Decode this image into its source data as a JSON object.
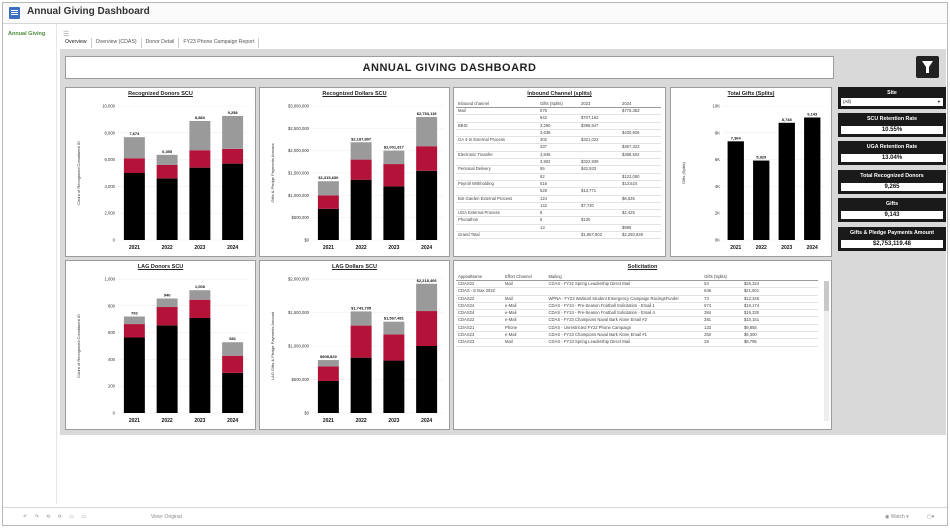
{
  "app": {
    "title": "Annual Giving Dashboard",
    "nav_item": "Annual Giving"
  },
  "tabs": [
    {
      "label": "Overview"
    },
    {
      "label": "Overview (CDAS)"
    },
    {
      "label": "Donor Detail"
    },
    {
      "label": "FY23 Phone Campaign Report"
    }
  ],
  "dashboard_title": "ANNUAL GIVING DASHBOARD",
  "colors": {
    "black": "#000000",
    "red": "#b5123a",
    "gray": "#9a9a9a"
  },
  "sidebar": {
    "site_label": "Site",
    "site_value": "(All)",
    "kpis": [
      {
        "label": "SCU Retention Rate",
        "value": "10.55%"
      },
      {
        "label": "UGA Retention Rate",
        "value": "13.04%"
      },
      {
        "label": "Total Recognized Donors",
        "value": "9,265"
      },
      {
        "label": "Gifts",
        "value": "9,143"
      },
      {
        "label": "Gifts & Pledge Payments Amount",
        "value": "$2,753,119.48"
      }
    ]
  },
  "chart_data": [
    {
      "type": "bar",
      "title": "Recognized Donors SCU",
      "ylabel": "Count of Recognized Constituent ID",
      "categories": [
        "2021",
        "2022",
        "2023",
        "2024"
      ],
      "ylim": [
        0,
        10000
      ],
      "yticks": [
        "10,000",
        "8,000",
        "6,000",
        "4,000",
        "2,000",
        "0"
      ],
      "stacks": [
        [
          5000,
          1100,
          1574
        ],
        [
          4600,
          1000,
          755
        ],
        [
          5400,
          1300,
          2183
        ],
        [
          5700,
          1100,
          2458
        ]
      ],
      "totals": [
        "7,674",
        "6,355",
        "8,883",
        "9,258"
      ]
    },
    {
      "type": "bar",
      "title": "Recognized Dollars SCU",
      "ylabel": "Gifts & Pledge Payments Amount",
      "categories": [
        "2021",
        "2022",
        "2023",
        "2024"
      ],
      "ylim": [
        0,
        3000000
      ],
      "yticks": [
        "$3,000,000",
        "$2,500,000",
        "$2,000,000",
        "$1,500,000",
        "$1,000,000",
        "$500,000",
        "$0"
      ],
      "stacks": [
        [
          700000,
          300000,
          315630
        ],
        [
          1350000,
          450000,
          387897
        ],
        [
          1200000,
          500000,
          301817
        ],
        [
          1550000,
          550000,
          653119
        ]
      ],
      "totals": [
        "$1,315,630",
        "$2,187,897",
        "$2,001,817",
        "$2,753,119"
      ]
    },
    {
      "type": "bar",
      "title": "Total Gifts (Splits)",
      "ylabel": "Gifts (Splits)",
      "categories": [
        "2021",
        "2022",
        "2023",
        "2024"
      ],
      "ylim": [
        0,
        10000
      ],
      "yticks": [
        "10K",
        "8K",
        "6K",
        "4K",
        "2K",
        "0K"
      ],
      "stacks": [
        [
          7364,
          0,
          0
        ],
        [
          5929,
          0,
          0
        ],
        [
          8748,
          0,
          0
        ],
        [
          9143,
          0,
          0
        ]
      ],
      "totals": [
        "7,364",
        "5,929",
        "8,748",
        "9,143"
      ]
    },
    {
      "type": "bar",
      "title": "LAG Donors SCU",
      "ylabel": "Count of Recognized Constituent ID",
      "categories": [
        "2021",
        "2022",
        "2023",
        "2024"
      ],
      "ylim": [
        0,
        1100
      ],
      "yticks": [
        "1,000",
        "800",
        "600",
        "400",
        "200",
        "0"
      ],
      "stacks": [
        [
          620,
          110,
          62
        ],
        [
          720,
          150,
          70
        ],
        [
          780,
          150,
          78
        ],
        [
          330,
          140,
          111
        ]
      ],
      "totals": [
        "792",
        "940",
        "1,008",
        "581"
      ]
    },
    {
      "type": "bar",
      "title": "LAG Dollars SCU",
      "ylabel": "LAG Gifts & Pledge Payments Amount",
      "categories": [
        "2021",
        "2022",
        "2023",
        "2024"
      ],
      "ylim": [
        0,
        2300000
      ],
      "yticks": [
        "$2,000,000",
        "$1,500,000",
        "$1,000,000",
        "$500,000",
        "$0"
      ],
      "stacks": [
        [
          550000,
          250000,
          108829
        ],
        [
          950000,
          550000,
          243795
        ],
        [
          900000,
          450000,
          217481
        ],
        [
          1150000,
          600000,
          468406
        ]
      ],
      "totals": [
        "$908,829",
        "$1,743,795",
        "$1,567,481",
        "$2,218,406"
      ]
    }
  ],
  "inbound": {
    "title": "Inbound Channel (splits)",
    "headers": [
      "Inbound channel",
      "Gifts (Splits)",
      "2023",
      "2024"
    ],
    "rows": [
      [
        "Mail",
        "575",
        "",
        "$776,383"
      ],
      [
        "",
        "642",
        "$707,162",
        ""
      ],
      [
        "BBIS",
        "3,290",
        "$398,647",
        ""
      ],
      [
        "",
        "3,638",
        "",
        "$430,926"
      ],
      [
        "GA 4-m External Process",
        "302",
        "$321,022",
        ""
      ],
      [
        "",
        "337",
        "",
        "$367,323"
      ],
      [
        "Electronic Transfer",
        "3,845",
        "",
        "$388,502"
      ],
      [
        "",
        "3,902",
        "$322,939",
        ""
      ],
      [
        "Personal Delivery",
        "55",
        "$42,933",
        ""
      ],
      [
        "",
        "62",
        "",
        "$122,050"
      ],
      [
        "Payroll Withholding",
        "516",
        "",
        "$13,524"
      ],
      [
        "",
        "528",
        "$13,771",
        ""
      ],
      [
        "Bot Garden External Process",
        "124",
        "",
        "$6,535"
      ],
      [
        "",
        "142",
        "$7,730",
        ""
      ],
      [
        "UGA External Process",
        "8",
        "",
        "$2,425"
      ],
      [
        "Phonathon",
        "5",
        "$130",
        ""
      ],
      [
        "",
        "13",
        "",
        "$995"
      ],
      [
        "Grand Total",
        "",
        "$1,867,603",
        "$2,250,839"
      ]
    ]
  },
  "solicitation": {
    "title": "Solicitation",
    "headers": [
      "AppealName",
      "Effort Channel",
      "Mailing",
      "Gifts (Splits)",
      ""
    ],
    "rows": [
      [
        "CDAS22",
        "Mail",
        "CDAS - FY22 Spring Leadership Direct Mail",
        "53",
        "$26,324"
      ],
      [
        "CDAS - E Bax 2022",
        "",
        "",
        "646",
        "$21,501"
      ],
      [
        "CDAS22",
        "Mail",
        "WPNA - FY23 Walmart Student Emergency Campaign RacingsFunder",
        "73",
        "$12,345"
      ],
      [
        "CDAS24",
        "e-Mail",
        "CDAS - FY24 - Pre-Season Football Solicitation - Email 1",
        "674",
        "$16,174"
      ],
      [
        "CDAS24",
        "e-Mail",
        "CDAS - FY24 - Pre-Season Football Solicitation - Email 4",
        "384",
        "$16,330"
      ],
      [
        "CDAS22",
        "e-Mail",
        "CDAS - FY23 Champions Naval Bark Alone Email #2",
        "281",
        "$10,151"
      ],
      [
        "CDAS21",
        "Phone",
        "CDAS - Unrestricted FY22 Phone Campaign",
        "133",
        "$9,855"
      ],
      [
        "CDAS23",
        "e-Mail",
        "CDAS - FY23 Champions Naval Bark Alone Email #1",
        "250",
        "$9,300"
      ],
      [
        "CDAS23",
        "Mail",
        "CDAS - FY23 Spring Leadership Direct Mail",
        "29",
        "$8,795"
      ]
    ]
  },
  "bottom": {
    "view_label": "View: Original",
    "watch_label": "Watch"
  }
}
